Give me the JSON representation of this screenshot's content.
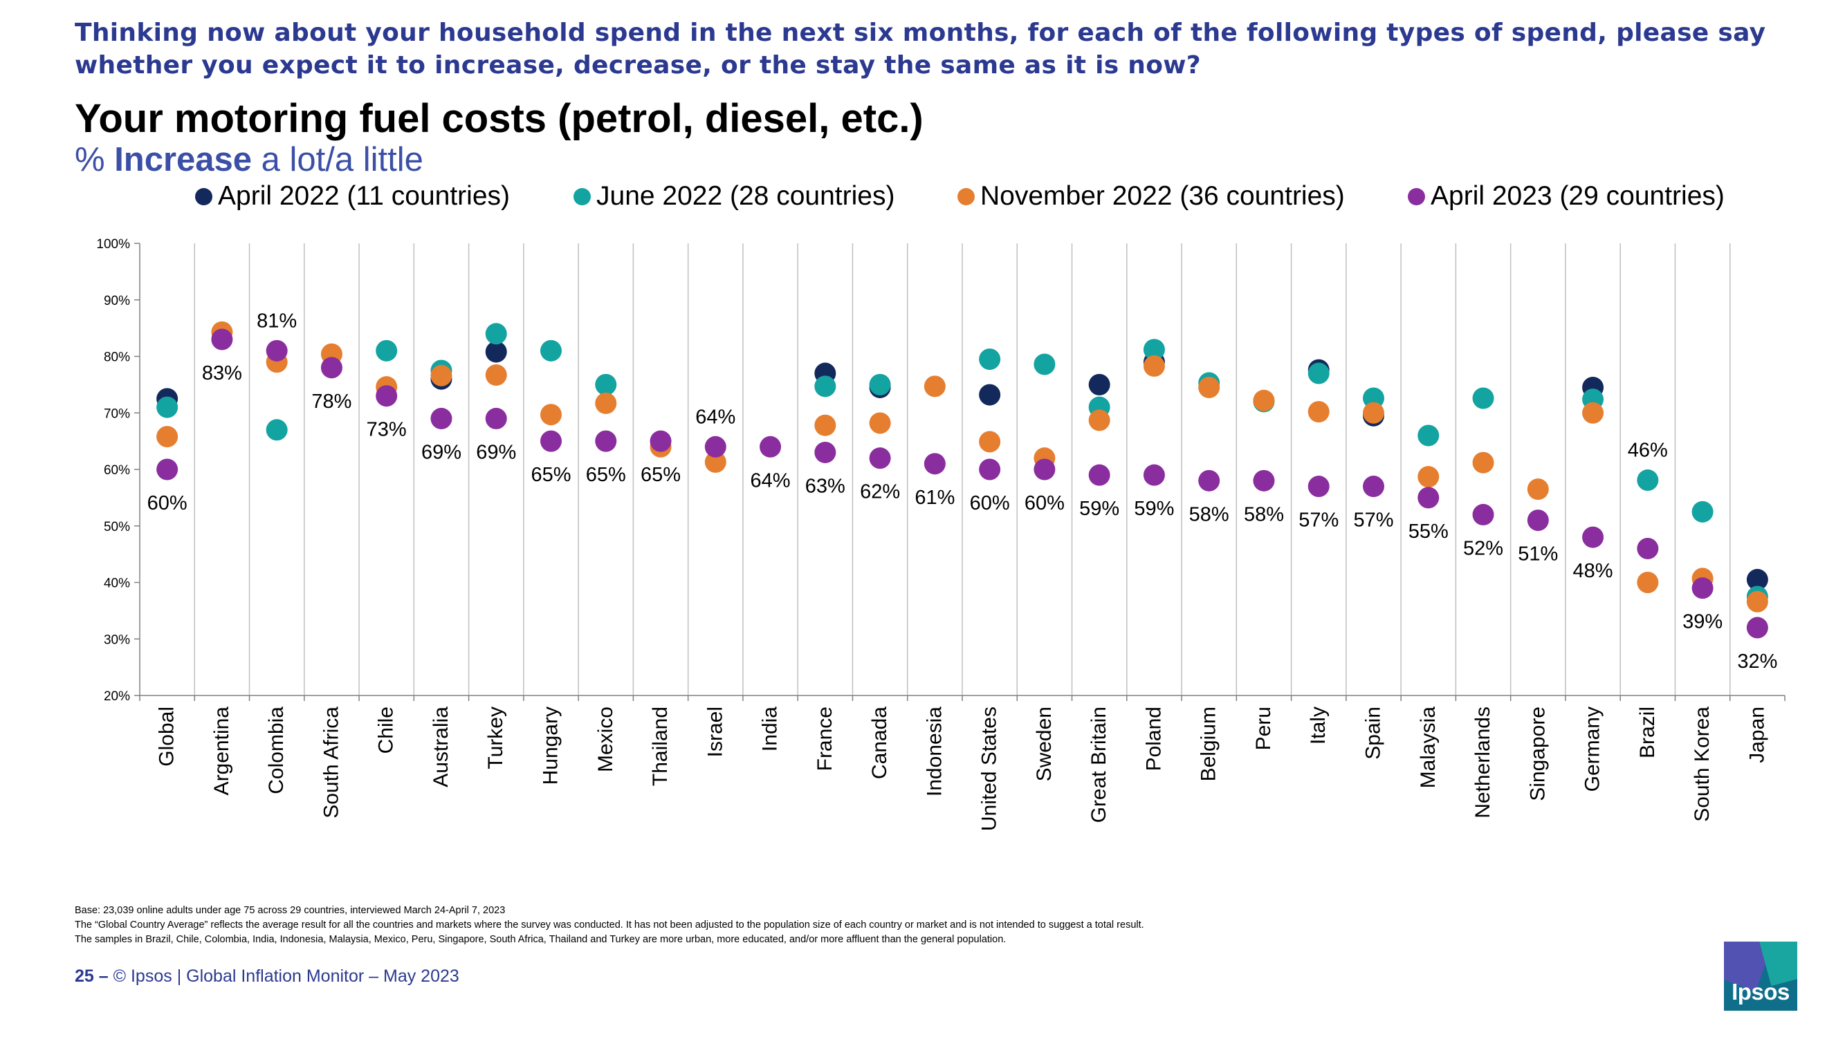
{
  "header": {
    "question": "Thinking now about your household spend in the next six months, for each of the following types of spend, please say whether you expect it to increase, decrease, or the stay the same as it is now?",
    "title": "Your motoring fuel costs (petrol, diesel, etc.)",
    "subtitle_prefix": "% ",
    "subtitle_bold": "Increase",
    "subtitle_suffix": " a lot/a little"
  },
  "legend": [
    {
      "label": "April 2022 (11 countries)",
      "color": "#13295c"
    },
    {
      "label": "June 2022 (28 countries)",
      "color": "#13a3a0"
    },
    {
      "label": "November 2022 (36 countries)",
      "color": "#e67e30"
    },
    {
      "label": "April 2023  (29 countries)",
      "color": "#8a2d9e"
    }
  ],
  "chart_data": {
    "type": "scatter",
    "title": "Your motoring fuel costs (petrol, diesel, etc.)",
    "ylabel": "% Increase a lot/a little",
    "ylim": [
      20,
      100
    ],
    "yticks": [
      20,
      30,
      40,
      50,
      60,
      70,
      80,
      90,
      100
    ],
    "ytick_format": "%",
    "categories": [
      "Global",
      "Argentina",
      "Colombia",
      "South Africa",
      "Chile",
      "Australia",
      "Turkey",
      "Hungary",
      "Mexico",
      "Thailand",
      "Israel",
      "India",
      "France",
      "Canada",
      "Indonesia",
      "United States",
      "Sweden",
      "Great Britain",
      "Poland",
      "Belgium",
      "Peru",
      "Italy",
      "Spain",
      "Malaysia",
      "Netherlands",
      "Singapore",
      "Germany",
      "Brazil",
      "South Korea",
      "Japan"
    ],
    "series": [
      {
        "name": "April 2022 (11 countries)",
        "color": "#13295c",
        "values": [
          72.5,
          null,
          null,
          null,
          null,
          76,
          80.8,
          null,
          null,
          null,
          null,
          null,
          77,
          74.5,
          null,
          73.2,
          null,
          75,
          79,
          null,
          null,
          77.6,
          69.5,
          null,
          null,
          null,
          74.5,
          null,
          null,
          40.5
        ]
      },
      {
        "name": "June 2022 (28 countries)",
        "color": "#13a3a0",
        "values": [
          71,
          null,
          67,
          null,
          81,
          77.5,
          84,
          81,
          75,
          null,
          null,
          null,
          74.7,
          75,
          null,
          79.5,
          78.6,
          71,
          81.2,
          75.3,
          72,
          77,
          72.6,
          66,
          72.6,
          null,
          72.4,
          58.1,
          52.5,
          37.5
        ]
      },
      {
        "name": "November 2022 (36 countries)",
        "color": "#e67e30",
        "values": [
          65.8,
          84.3,
          79,
          80.4,
          74.6,
          76.6,
          76.7,
          69.7,
          71.7,
          64,
          61.3,
          null,
          67.8,
          68.2,
          74.7,
          64.9,
          62,
          68.7,
          78.3,
          74.5,
          72.2,
          70.2,
          70,
          58.7,
          61.2,
          56.5,
          70,
          40,
          40.7,
          36.6
        ]
      },
      {
        "name": "April 2023  (29 countries)",
        "color": "#8a2d9e",
        "values": [
          60,
          83,
          81,
          78,
          73,
          69,
          69,
          65,
          65,
          65,
          64,
          64,
          63,
          62,
          61,
          60,
          60,
          59,
          59,
          58,
          58,
          57,
          57,
          55,
          52,
          51,
          48,
          46,
          39,
          32
        ]
      }
    ],
    "data_labels": [
      "60%",
      "83%",
      "81%",
      "78%",
      "73%",
      "69%",
      "69%",
      "65%",
      "65%",
      "65%",
      "64%",
      "64%",
      "63%",
      "62%",
      "61%",
      "60%",
      "60%",
      "59%",
      "59%",
      "58%",
      "58%",
      "57%",
      "57%",
      "55%",
      "52%",
      "51%",
      "48%",
      "46%",
      "39%",
      "32%"
    ],
    "data_label_positions": [
      "below",
      "below",
      "above",
      "below",
      "below",
      "below",
      "below",
      "below",
      "below",
      "below",
      "above",
      "below",
      "below",
      "below",
      "below",
      "below",
      "below",
      "below",
      "below",
      "below",
      "below",
      "below",
      "below",
      "below",
      "below",
      "below",
      "below",
      "above",
      "below",
      "below"
    ],
    "grid": false
  },
  "footnotes": [
    "Base: 23,039 online adults under age 75 across 29 countries, interviewed March 24-April 7, 2023",
    "The “Global Country Average” reflects the average result for all the countries and markets where the survey was conducted. It has not been adjusted to the population size of each country or market and is not intended to suggest a total result.",
    "The samples in Brazil, Chile, Colombia, India, Indonesia, Malaysia, Mexico, Peru, Singapore, South Africa, Thailand and Turkey are more urban, more educated, and/or more affluent than the general population."
  ],
  "footer": {
    "page": "25 –",
    "text": "© Ipsos | Global Inflation Monitor – May 2023"
  },
  "logo": {
    "text": "Ipsos"
  }
}
